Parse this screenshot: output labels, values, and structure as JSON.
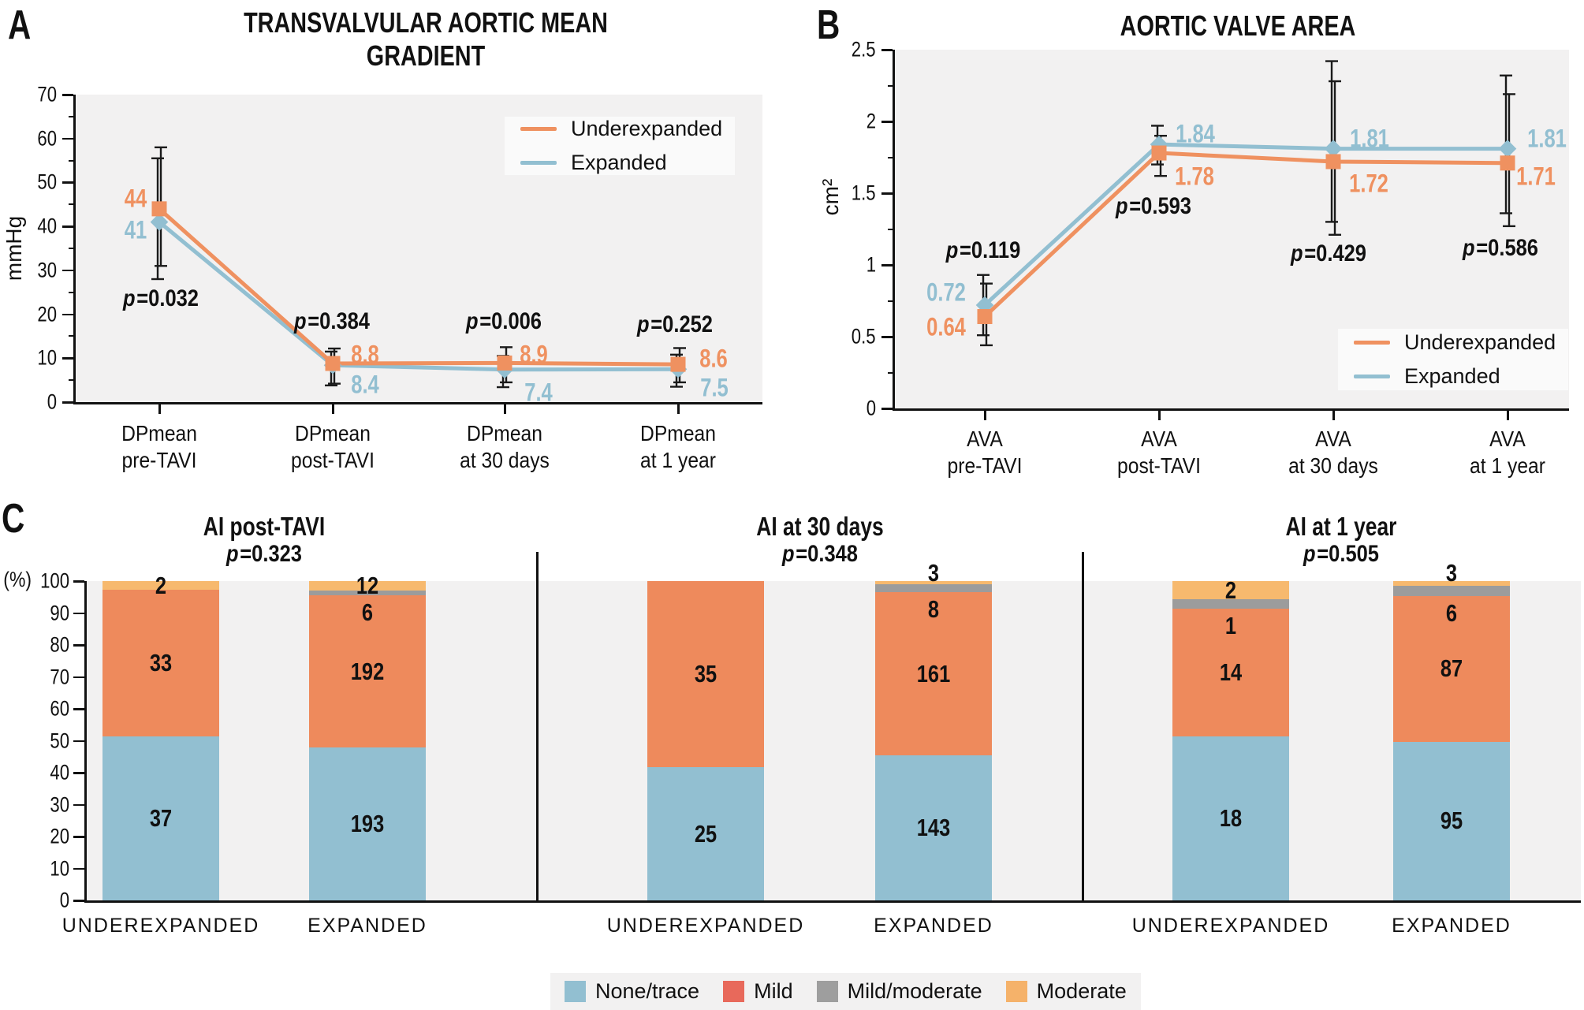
{
  "figure": {
    "panel_letters": [
      "A",
      "B",
      "C"
    ]
  },
  "colors": {
    "underexpanded": "#EF9160",
    "expanded": "#92BFD1",
    "plot_bg": "#F2F1F1",
    "legend_bg": "#FAFAFA",
    "axis": "#111111",
    "error_bar": "#1A1A1A",
    "bar_segments": {
      "none_trace": "#92BFD1",
      "mild": "#EE8A5C",
      "mild_moderate": "#9C9C9C",
      "moderate": "#F7B96E"
    },
    "legend_swatches": {
      "none_trace": "#92BFD1",
      "mild": "#E8695B",
      "mild_moderate": "#9E9E9E",
      "moderate": "#F5B26A"
    }
  },
  "chart_data": [
    {
      "id": "A",
      "type": "line",
      "title": "TRANSVALVULAR AORTIC MEAN GRADIENT",
      "title_lines": [
        "TRANSVALVULAR AORTIC MEAN",
        "GRADIENT"
      ],
      "ylabel": "mmHg",
      "ylim": [
        0,
        70
      ],
      "ytick_step": 10,
      "grid": false,
      "legend_position": "top-right",
      "categories": [
        [
          "DPmean",
          "pre-TAVI"
        ],
        [
          "DPmean",
          "post-TAVI"
        ],
        [
          "DPmean",
          "at 30 days"
        ],
        [
          "DPmean",
          "at 1 year"
        ]
      ],
      "series": [
        {
          "name": "Underexpanded",
          "marker": "square",
          "values": [
            44,
            8.8,
            8.9,
            8.6
          ],
          "error_low": [
            31,
            4.2,
            4.5,
            4.5
          ],
          "error_high": [
            58,
            12.2,
            12.5,
            12.3
          ]
        },
        {
          "name": "Expanded",
          "marker": "diamond",
          "values": [
            41,
            8.4,
            7.4,
            7.5
          ],
          "error_low": [
            28,
            3.8,
            3.4,
            3.5
          ],
          "error_high": [
            55.5,
            11.5,
            10.5,
            10.8
          ]
        }
      ],
      "p_values": [
        "p=0.032",
        "p=0.384",
        "p=0.006",
        "p=0.252"
      ],
      "legend": [
        "Underexpanded",
        "Expanded"
      ]
    },
    {
      "id": "B",
      "type": "line",
      "title": "AORTIC VALVE AREA",
      "title_lines": [
        "AORTIC VALVE AREA"
      ],
      "ylabel": "cm²",
      "ylim": [
        0,
        2.5
      ],
      "ytick_step": 0.5,
      "grid": false,
      "legend_position": "bottom-right",
      "categories": [
        [
          "AVA",
          "pre-TAVI"
        ],
        [
          "AVA",
          "post-TAVI"
        ],
        [
          "AVA",
          "at 30 days"
        ],
        [
          "AVA",
          "at 1 year"
        ]
      ],
      "series": [
        {
          "name": "Underexpanded",
          "marker": "square",
          "values": [
            0.64,
            1.78,
            1.72,
            1.71
          ],
          "error_low": [
            0.44,
            1.62,
            1.21,
            1.27
          ],
          "error_high": [
            0.87,
            1.9,
            2.28,
            2.19
          ]
        },
        {
          "name": "Expanded",
          "marker": "diamond",
          "values": [
            0.72,
            1.84,
            1.81,
            1.81
          ],
          "error_low": [
            0.51,
            1.7,
            1.3,
            1.36
          ],
          "error_high": [
            0.93,
            1.97,
            2.42,
            2.32
          ]
        }
      ],
      "p_values": [
        "p=0.119",
        "p=0.593",
        "p=0.429",
        "p=0.586"
      ],
      "legend": [
        "Underexpanded",
        "Expanded"
      ]
    },
    {
      "id": "C",
      "type": "stacked-bar-percent",
      "ylabel": "(%)",
      "ylim": [
        0,
        100
      ],
      "ytick_step": 10,
      "segments": [
        {
          "key": "none_trace",
          "label": "None/trace"
        },
        {
          "key": "mild",
          "label": "Mild"
        },
        {
          "key": "mild_moderate",
          "label": "Mild/moderate"
        },
        {
          "key": "moderate",
          "label": "Moderate"
        }
      ],
      "groups": [
        {
          "title": "AI post-TAVI",
          "p_value": "p=0.323",
          "bars": [
            {
              "label": "UNDEREXPANDED",
              "counts": [
                37,
                33,
                0,
                2
              ]
            },
            {
              "label": "EXPANDED",
              "counts": [
                193,
                192,
                6,
                12
              ]
            }
          ]
        },
        {
          "title": "AI at 30 days",
          "p_value": "p=0.348",
          "bars": [
            {
              "label": "UNDEREXPANDED",
              "counts": [
                25,
                35,
                0,
                0
              ]
            },
            {
              "label": "EXPANDED",
              "counts": [
                143,
                161,
                8,
                3
              ]
            }
          ]
        },
        {
          "title": "AI at 1 year",
          "p_value": "p=0.505",
          "bars": [
            {
              "label": "UNDEREXPANDED",
              "counts": [
                18,
                14,
                1,
                2
              ]
            },
            {
              "label": "EXPANDED",
              "counts": [
                95,
                87,
                6,
                3
              ]
            }
          ]
        }
      ],
      "legend": [
        "None/trace",
        "Mild",
        "Mild/moderate",
        "Moderate"
      ]
    }
  ]
}
